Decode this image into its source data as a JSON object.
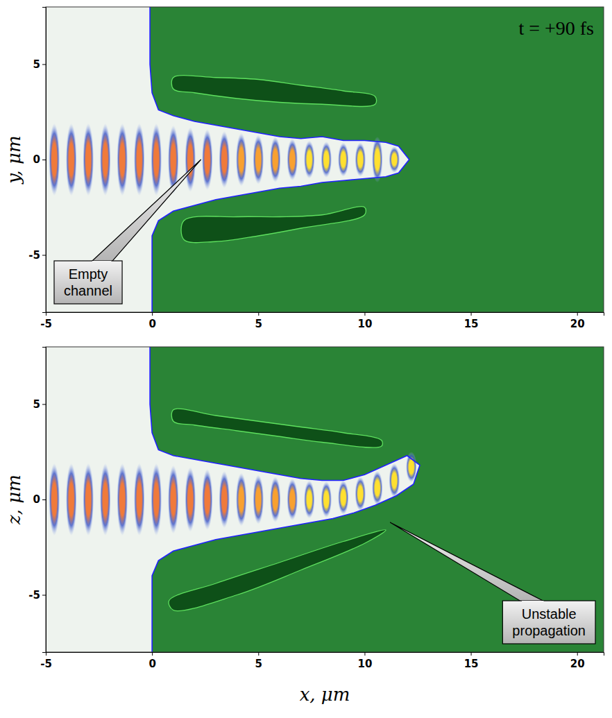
{
  "chart_data": [
    {
      "type": "field_map",
      "color": "#2a8436",
      "y_label": "y, μm",
      "xlim": [
        -5,
        21.25
      ],
      "ylim": [
        -8,
        8
      ],
      "xticks": [
        -5,
        0,
        5,
        10,
        15,
        20
      ],
      "yticks": [
        -5,
        0,
        5
      ],
      "series": [
        {
          "type": "line",
          "color": "#2020ff",
          "x": [
            -0.1,
            -0.1,
            0,
            0.3,
            1,
            2,
            3,
            4,
            5,
            6,
            7,
            8,
            9,
            10,
            11,
            11.6,
            12.1,
            11.6,
            11,
            10,
            9,
            8,
            7,
            6,
            5,
            4,
            3,
            2,
            1,
            0.3,
            0,
            0,
            0
          ],
          "values": [
            8,
            5,
            3.5,
            2.6,
            2.3,
            2.0,
            1.8,
            1.6,
            1.4,
            1.2,
            1.1,
            1.2,
            1.0,
            1.0,
            0.9,
            0.7,
            0,
            -0.7,
            -0.9,
            -1.0,
            -1.1,
            -1.2,
            -1.4,
            -1.5,
            -1.7,
            -1.9,
            -2.1,
            -2.4,
            -2.7,
            -3.2,
            -4,
            -6,
            -8
          ]
        },
        {
          "type": "area",
          "color": "#0e5018",
          "x": [
            1,
            3,
            5,
            7,
            9,
            10.5,
            10.5,
            8,
            6,
            4,
            2,
            1
          ],
          "values": [
            4.3,
            4.3,
            4.2,
            3.9,
            3.6,
            3.3,
            2.9,
            2.9,
            3.0,
            3.2,
            3.5,
            3.7
          ]
        },
        {
          "type": "area",
          "color": "#0e5018",
          "x": [
            1.5,
            4,
            6,
            8,
            10,
            10,
            7,
            5,
            3,
            1.5
          ],
          "values": [
            -3.2,
            -3.0,
            -3.0,
            -2.9,
            -2.5,
            -2.9,
            -3.6,
            -4.0,
            -4.3,
            -4.2
          ]
        },
        {
          "type": "scatter",
          "marker": "ellipse",
          "x": [
            -4.6,
            -3.8,
            -3.0,
            -2.2,
            -1.4,
            -0.6,
            0.2,
            1.0,
            1.8,
            2.6,
            3.4,
            4.2,
            5.0,
            5.8,
            6.6,
            7.4,
            8.2,
            9.0,
            9.8,
            10.6,
            11.4
          ],
          "values": [
            0,
            0,
            0,
            0,
            0,
            0,
            0,
            0,
            0,
            0,
            0,
            0,
            0,
            0,
            0,
            0,
            0,
            0,
            0,
            0,
            0
          ],
          "height": [
            3.8,
            3.8,
            3.8,
            3.8,
            3.8,
            3.8,
            3.8,
            3.6,
            3.4,
            3.2,
            3.0,
            2.8,
            2.6,
            2.4,
            2.2,
            2.0,
            1.9,
            1.8,
            1.8,
            2.4,
            1.4
          ],
          "colors": [
            "#f07a3a",
            "#f07a3a",
            "#f07a3a",
            "#f07a3a",
            "#f07a3a",
            "#f07a3a",
            "#f07a3a",
            "#f07a3a",
            "#f07a3a",
            "#f07a3a",
            "#f07a3a",
            "#f8a030",
            "#f8a030",
            "#f8a030",
            "#f8a030",
            "#ffe030",
            "#ffe030",
            "#ffe030",
            "#ffe030",
            "#ffe030",
            "#ffe030"
          ]
        }
      ],
      "annotations": [
        {
          "text": "t = +90 fs"
        },
        {
          "text": "Empty channel",
          "x": 2.3,
          "y": 0
        }
      ]
    },
    {
      "type": "field_map",
      "color": "#2a8436",
      "y_label": "z, μm",
      "x_label": "x, μm",
      "xlim": [
        -5,
        21.25
      ],
      "ylim": [
        -8,
        8
      ],
      "xticks": [
        -5,
        0,
        5,
        10,
        15,
        20
      ],
      "yticks": [
        -5,
        0,
        5
      ],
      "series": [
        {
          "type": "line",
          "color": "#2020ff",
          "x": [
            -0.1,
            -0.1,
            0,
            0.3,
            1,
            2,
            3,
            4,
            5,
            6,
            7,
            8,
            9,
            10,
            11,
            12,
            12.6,
            12.3,
            11.5,
            10.5,
            9.5,
            8.5,
            7,
            6,
            5,
            4,
            3,
            2,
            1,
            0.3,
            0,
            0,
            0
          ],
          "values": [
            8,
            5,
            3.5,
            2.6,
            2.3,
            2.1,
            1.9,
            1.7,
            1.5,
            1.3,
            1.1,
            1.0,
            1.0,
            1.3,
            1.8,
            2.3,
            1.8,
            0.8,
            0.2,
            -0.3,
            -0.7,
            -1.0,
            -1.3,
            -1.5,
            -1.7,
            -1.9,
            -2.1,
            -2.4,
            -2.7,
            -3.2,
            -4,
            -6,
            -8
          ]
        },
        {
          "type": "area",
          "color": "#0e5018",
          "x": [
            1,
            3,
            5,
            7,
            9,
            10.8,
            10.8,
            8,
            6,
            4,
            2,
            1
          ],
          "values": [
            4.7,
            4.4,
            4.1,
            3.8,
            3.5,
            3.1,
            2.8,
            3.0,
            3.3,
            3.6,
            3.9,
            4.1
          ]
        },
        {
          "type": "area",
          "color": "#0e5018",
          "x": [
            0.8,
            3,
            6,
            9,
            11,
            10,
            7,
            4,
            1
          ],
          "values": [
            -5.3,
            -4.4,
            -3.3,
            -2.2,
            -1.6,
            -2.3,
            -3.7,
            -5.0,
            -5.8
          ]
        },
        {
          "type": "scatter",
          "marker": "ellipse",
          "x": [
            -4.6,
            -3.8,
            -3.0,
            -2.2,
            -1.4,
            -0.6,
            0.2,
            1.0,
            1.8,
            2.6,
            3.4,
            4.2,
            5.0,
            5.8,
            6.6,
            7.4,
            8.2,
            9.0,
            9.8,
            10.6,
            11.4,
            12.2
          ],
          "values": [
            0,
            0,
            0,
            0,
            0,
            0,
            0,
            0,
            0,
            0,
            0,
            0,
            0,
            0,
            0,
            0,
            0,
            0.1,
            0.3,
            0.6,
            1.0,
            1.7
          ],
          "height": [
            3.8,
            3.8,
            3.8,
            3.8,
            3.8,
            3.8,
            3.8,
            3.6,
            3.4,
            3.2,
            3.0,
            2.8,
            2.6,
            2.4,
            2.2,
            2.0,
            1.9,
            1.8,
            1.8,
            1.8,
            1.8,
            1.6
          ],
          "colors": [
            "#f07a3a",
            "#f07a3a",
            "#f07a3a",
            "#f07a3a",
            "#f07a3a",
            "#f07a3a",
            "#f07a3a",
            "#f07a3a",
            "#f07a3a",
            "#f07a3a",
            "#f07a3a",
            "#f8a030",
            "#f8a030",
            "#f8a030",
            "#f8a030",
            "#ffe030",
            "#ffe030",
            "#ffe030",
            "#ffe030",
            "#ffe030",
            "#ffe030",
            "#ffe030"
          ]
        }
      ],
      "annotations": [
        {
          "text": "Unstable propagation",
          "x": 11.2,
          "y": -1.2
        }
      ]
    }
  ]
}
